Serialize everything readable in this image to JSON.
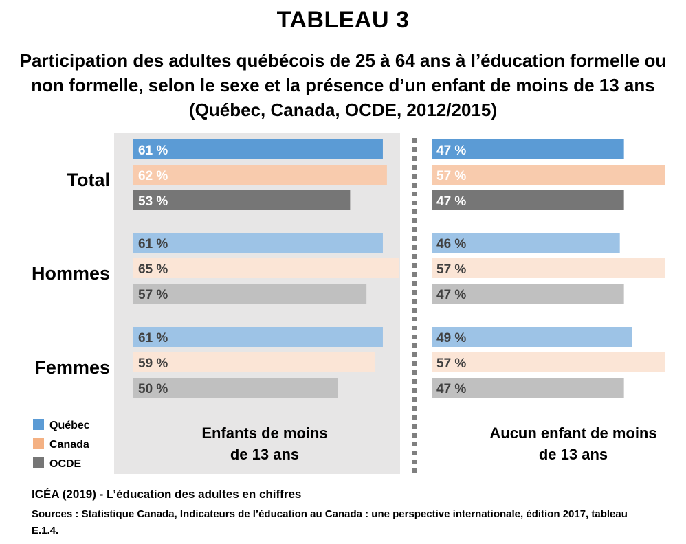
{
  "header": {
    "title": "TABLEAU 3",
    "subtitle": "Participation des adultes québécois de 25 à 64 ans à l’éducation formelle ou non formelle, selon le sexe et la présence d’un enfant de moins de 13 ans (Québec, Canada, OCDE, 2012/2015)"
  },
  "chart_data": {
    "type": "bar",
    "orientation": "horizontal",
    "categories": [
      "Total",
      "Hommes",
      "Femmes"
    ],
    "panels": [
      {
        "label": "Enfants de moins de 13 ans",
        "series": [
          {
            "name": "Québec",
            "values": [
              61,
              61,
              61
            ],
            "labels": [
              "61 %",
              "61 %",
              "61 %"
            ]
          },
          {
            "name": "Canada",
            "values": [
              62,
              65,
              59
            ],
            "labels": [
              "62 %",
              "65 %",
              "59 %"
            ]
          },
          {
            "name": "OCDE",
            "values": [
              53,
              57,
              50
            ],
            "labels": [
              "53 %",
              "57 %",
              "50 %"
            ]
          }
        ]
      },
      {
        "label": "Aucun enfant de moins de 13 ans",
        "series": [
          {
            "name": "Québec",
            "values": [
              47,
              46,
              49
            ],
            "labels": [
              "47 %",
              "46 %",
              "49 %"
            ]
          },
          {
            "name": "Canada",
            "values": [
              57,
              57,
              57
            ],
            "labels": [
              "57 %",
              "57 %",
              "57 %"
            ]
          },
          {
            "name": "OCDE",
            "values": [
              47,
              47,
              47
            ],
            "labels": [
              "47 %",
              "47 %",
              "47 %"
            ]
          }
        ]
      }
    ],
    "legend": [
      {
        "name": "Québec",
        "color": "#5b9bd5"
      },
      {
        "name": "Canada",
        "color": "#f4b183"
      },
      {
        "name": "OCDE",
        "color": "#767676"
      }
    ],
    "colors": {
      "total": [
        "#5b9bd5",
        "#f8cbad",
        "#767676"
      ],
      "subgroup": [
        "#9dc3e6",
        "#fbe5d6",
        "#c0c0c0"
      ]
    },
    "legend_placement": "bottom-left"
  },
  "footer": {
    "citation": "ICÉA (2019) - L’éducation des adultes en chiffres",
    "sources": "Sources : Statistique Canada, Indicateurs de l’éducation au Canada : une perspective internationale, édition 2017, tableau E.1.4."
  }
}
